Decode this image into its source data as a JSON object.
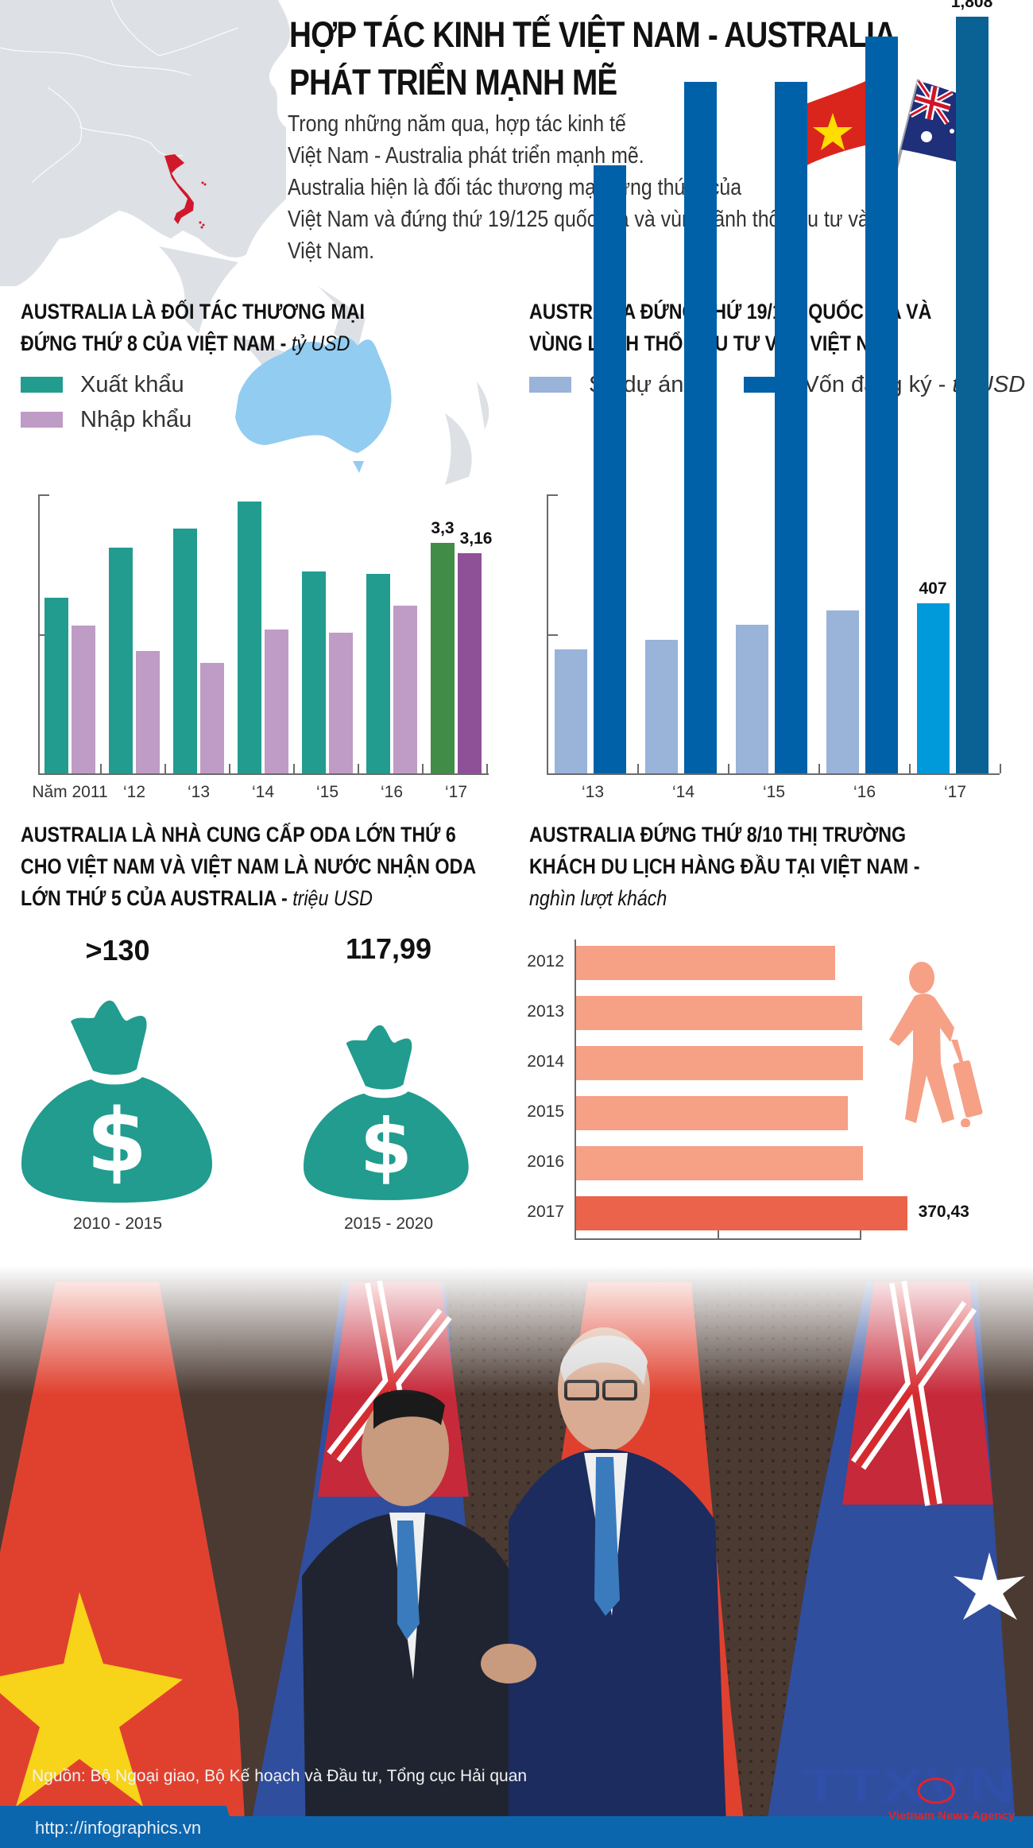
{
  "header": {
    "title_line1": "HỢP TÁC KINH TẾ VIỆT NAM - AUSTRALIA",
    "title_line2": "PHÁT TRIỂN MẠNH MẼ",
    "intro_lines": [
      "Trong những năm qua, hợp tác kinh tế",
      "Việt Nam - Australia phát triển mạnh mẽ.",
      "Australia hiện là đối tác thương mại đứng thứ 8 của",
      "Việt Nam và đứng thứ 19/125 quốc gia và vùng lãnh thổ đầu tư vào",
      "Việt Nam."
    ]
  },
  "trade": {
    "title_line1": "AUSTRALIA LÀ ĐỐI TÁC THƯƠNG MẠI",
    "title_line2": "ĐỨNG THỨ 8 CỦA VIỆT NAM - ",
    "unit": "tỷ USD",
    "legend": [
      {
        "label": "Xuất khẩu",
        "color": "#219C8F"
      },
      {
        "label": "Nhập khẩu",
        "color": "#BE9CC5"
      }
    ]
  },
  "investment": {
    "title_line1": "AUSTRALIA ĐỨNG THỨ 19/125 QUỐC GIA VÀ",
    "title_line2": "VÙNG LÃNH THỔ ĐẦU TƯ VÀO VIỆT NAM",
    "legend": [
      {
        "label": "Số dự án",
        "color": "#99B3D9"
      },
      {
        "label": "Vốn đăng ký - ",
        "unit": "tỷ USD",
        "color": "#0060A8"
      }
    ]
  },
  "oda": {
    "title_line1": "AUSTRALIA LÀ NHÀ CUNG CẤP ODA LỚN THỨ 6",
    "title_line2": "CHO VIỆT NAM VÀ VIỆT NAM LÀ NƯỚC NHẬN ODA",
    "title_line3": "LỚN THỨ 5 CỦA AUSTRALIA - ",
    "unit": "triệu USD",
    "items": [
      {
        "value": ">130",
        "period": "2010 - 2015"
      },
      {
        "value": "117,99",
        "period": "2015 - 2020"
      }
    ],
    "color": "#219C8F"
  },
  "tourism": {
    "title_line1": "AUSTRALIA ĐỨNG THỨ 8/10 THỊ TRƯỜNG",
    "title_line2": "KHÁCH DU LỊCH HÀNG ĐẦU TẠI VIỆT NAM -",
    "unit": "nghìn lượt khách"
  },
  "chart_data": [
    {
      "type": "bar",
      "title": "AUSTRALIA LÀ ĐỐI TÁC THƯƠNG MẠI ĐỨNG THỨ 8 CỦA VIỆT NAM - tỷ USD",
      "categories": [
        "Năm 2011",
        "‘12",
        "‘13",
        "‘14",
        "‘15",
        "‘16",
        "‘17"
      ],
      "series": [
        {
          "name": "Xuất khẩu",
          "values": [
            2.52,
            3.24,
            3.51,
            3.9,
            2.9,
            2.86,
            3.3
          ],
          "color": "#219C8F",
          "highlight_color": "#418C46"
        },
        {
          "name": "Nhập khẩu",
          "values": [
            2.12,
            1.76,
            1.58,
            2.06,
            2.02,
            2.41,
            3.16
          ],
          "color": "#BE9CC5",
          "highlight_color": "#8E5197"
        }
      ],
      "data_labels": {
        "‘17": [
          "3,3",
          "3,16"
        ]
      },
      "ylim": [
        0,
        4
      ],
      "legend_position": "top-left",
      "grid": false
    },
    {
      "type": "bar",
      "title": "AUSTRALIA ĐỨNG THỨ 19/125 QUỐC GIA VÀ VÙNG LÃNH THỔ ĐẦU TƯ VÀO VIỆT NAM",
      "categories": [
        "‘13",
        "‘14",
        "‘15",
        "‘16",
        "‘17"
      ],
      "series": [
        {
          "name": "Số dự án",
          "values": [
            296,
            319,
            355,
            389,
            407
          ],
          "color": "#99B3D9",
          "highlight_color": "#0099DA"
        },
        {
          "name": "Vốn đăng ký - tỷ USD",
          "values": [
            1.453,
            1.652,
            1.652,
            1.761,
            1.808
          ],
          "color": "#0060A8",
          "highlight_color": "#0A6193"
        }
      ],
      "data_labels": {
        "‘17": [
          "407",
          "1,808"
        ]
      },
      "legend_position": "top",
      "grid": false
    },
    {
      "type": "bar",
      "orientation": "horizontal",
      "title": "AUSTRALIA ĐỨNG THỨ 8/10 THỊ TRƯỜNG KHÁCH DU LỊCH HÀNG ĐẦU TẠI VIỆT NAM - nghìn lượt khách",
      "categories": [
        "2012",
        "2013",
        "2014",
        "2015",
        "2016",
        "2017"
      ],
      "values": [
        289.7,
        319.7,
        321.2,
        303.8,
        320.8,
        370.43
      ],
      "colors": [
        "#F6A086",
        "#F6A086",
        "#F6A086",
        "#F6A086",
        "#F6A086",
        "#EB634A"
      ],
      "data_labels": {
        "2017": "370,43"
      },
      "xlim": [
        0,
        400
      ],
      "xticks": [
        0,
        200,
        400
      ]
    },
    {
      "type": "pictogram",
      "title": "AUSTRALIA LÀ NHÀ CUNG CẤP ODA LỚN THỨ 6 CHO VIỆT NAM VÀ VIỆT NAM LÀ NƯỚC NHẬN ODA LỚN THỨ 5 CỦA AUSTRALIA - triệu USD",
      "categories": [
        "2010 - 2015",
        "2015 - 2020"
      ],
      "values": [
        130,
        117.99
      ],
      "labels": [
        ">130",
        "117,99"
      ]
    }
  ],
  "footer": {
    "source": "Nguồn: Bộ Ngoại giao, Bộ Kế hoạch và Đầu tư, Tổng cục Hải quan",
    "url": "http:://infographics.vn",
    "logo_text": "TTXVN",
    "logo_sub": "Vietnam News Agency"
  }
}
